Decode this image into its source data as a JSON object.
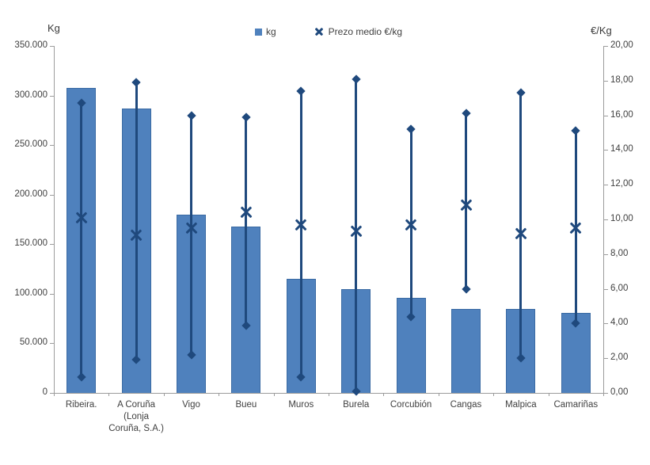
{
  "chart": {
    "left_axis_title": "Kg",
    "right_axis_title": "€/Kg",
    "legend": {
      "kg_label": "kg",
      "price_label": "Prezo medio €/kg"
    },
    "colors": {
      "bar_fill": "#4F81BD",
      "bar_border": "#3A6AA3",
      "marker": "#1F497D",
      "axis_line": "#9C9C9C",
      "tick_text": "#404040"
    }
  },
  "chart_data": {
    "type": "bar",
    "title": "",
    "legend_position": "top",
    "grid": false,
    "categories": [
      "Ribeira.",
      "A Coruña (Lonja Coruña, S.A.)",
      "Vigo",
      "Bueu",
      "Muros",
      "Burela",
      "Corcubión",
      "Cangas",
      "Malpica",
      "Camariñas"
    ],
    "series": [
      {
        "name": "kg",
        "type": "bar",
        "axis": "left",
        "values": [
          308000,
          287000,
          180000,
          168000,
          115000,
          105000,
          96000,
          85000,
          85000,
          81000
        ]
      },
      {
        "name": "Prezo medio €/kg",
        "type": "scatter",
        "marker": "x",
        "axis": "right",
        "values": [
          10.1,
          9.1,
          9.5,
          10.4,
          9.7,
          9.3,
          9.7,
          10.8,
          9.2,
          9.5
        ]
      },
      {
        "name": "range-high",
        "type": "hiloline-max",
        "marker": "diamond",
        "axis": "right",
        "values": [
          16.7,
          17.9,
          16.0,
          15.9,
          17.4,
          18.1,
          15.2,
          16.1,
          17.3,
          15.1
        ]
      },
      {
        "name": "range-low",
        "type": "hiloline-min",
        "marker": "diamond",
        "axis": "right",
        "values": [
          0.9,
          1.9,
          2.2,
          3.9,
          0.9,
          0.1,
          4.4,
          6.0,
          2.0,
          4.0
        ]
      }
    ],
    "left_axis": {
      "title": "Kg",
      "min": 0,
      "max": 350000,
      "tick_labels": [
        "350.000",
        "300.000",
        "250.000",
        "200.000",
        "150.000",
        "100.000",
        "50.000",
        "0"
      ]
    },
    "right_axis": {
      "title": "€/Kg",
      "min": 0,
      "max": 20,
      "tick_labels": [
        "20,00",
        "18,00",
        "16,00",
        "14,00",
        "12,00",
        "10,00",
        "8,00",
        "6,00",
        "4,00",
        "2,00",
        "0,00"
      ]
    }
  }
}
